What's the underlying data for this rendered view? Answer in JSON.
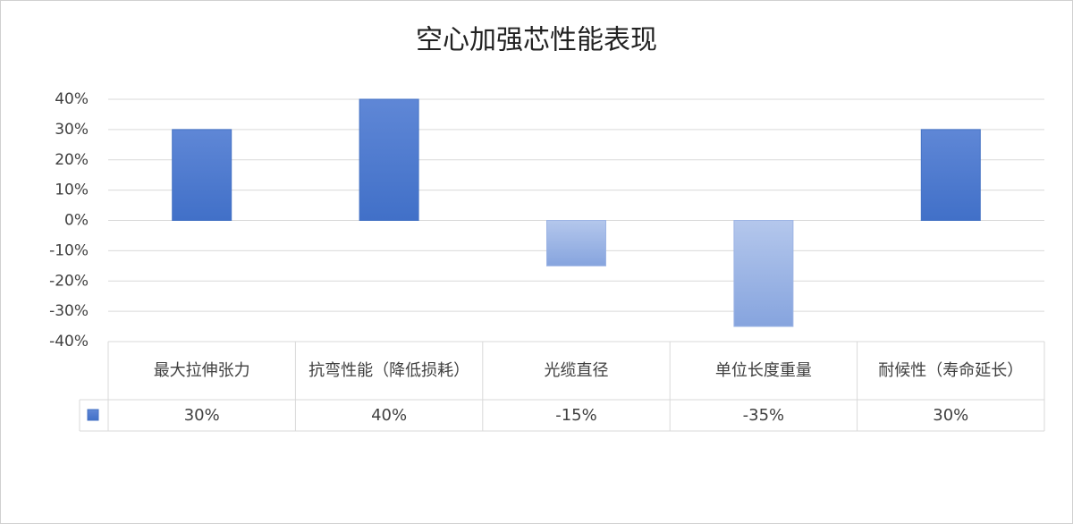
{
  "chart_data": {
    "type": "bar",
    "title": "空心加强芯性能表现",
    "categories": [
      "最大拉伸张力",
      "抗弯性能（降低损耗）",
      "光缆直径",
      "单位长度重量",
      "耐候性（寿命延长）"
    ],
    "values": [
      30,
      40,
      -15,
      -35,
      30
    ],
    "value_labels": [
      "30%",
      "40%",
      "-15%",
      "-35%",
      "30%"
    ],
    "color": "#4472c4",
    "ylim": [
      -40,
      40
    ],
    "yticks": [
      {
        "value": -40,
        "label": "-40%"
      },
      {
        "value": -30,
        "label": "-30%"
      },
      {
        "value": -20,
        "label": "-20%"
      },
      {
        "value": -10,
        "label": "-10%"
      },
      {
        "value": 0,
        "label": "0%"
      },
      {
        "value": 10,
        "label": "10%"
      },
      {
        "value": 20,
        "label": "20%"
      },
      {
        "value": 30,
        "label": "30%"
      },
      {
        "value": 40,
        "label": "40%"
      }
    ],
    "grid": true,
    "data_table": true
  }
}
